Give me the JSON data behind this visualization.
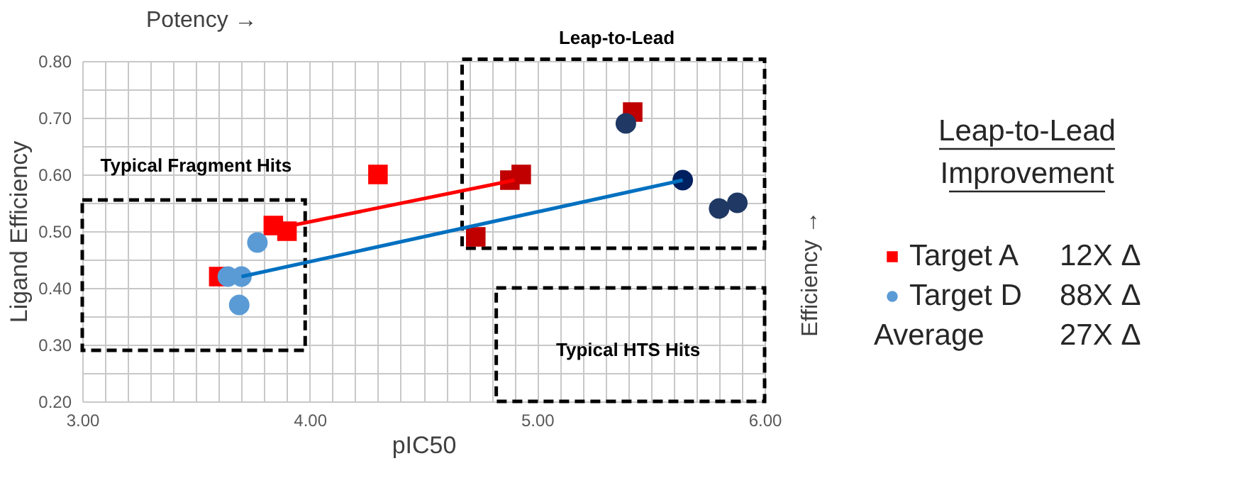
{
  "chart_data": {
    "type": "scatter",
    "xlabel": "pIC50",
    "ylabel": "Ligand Efficiency",
    "legend_title": "Leap-to-Lead Improvement",
    "legend": "right",
    "grid": true,
    "xlim": [
      3.0,
      6.0
    ],
    "ylim": [
      0.2,
      0.8
    ],
    "xticks": [
      {
        "value": 3.0,
        "label": "3.00"
      },
      {
        "value": 3.1,
        "label": null
      },
      {
        "value": 3.2,
        "label": null
      },
      {
        "value": 3.3,
        "label": null
      },
      {
        "value": 3.4,
        "label": null
      },
      {
        "value": 3.5,
        "label": null
      },
      {
        "value": 3.6,
        "label": null
      },
      {
        "value": 3.7,
        "label": null
      },
      {
        "value": 3.8,
        "label": null
      },
      {
        "value": 3.9,
        "label": null
      },
      {
        "value": 4.0,
        "label": "4.00"
      },
      {
        "value": 4.1,
        "label": null
      },
      {
        "value": 4.2,
        "label": null
      },
      {
        "value": 4.3,
        "label": null
      },
      {
        "value": 4.4,
        "label": null
      },
      {
        "value": 4.5,
        "label": null
      },
      {
        "value": 4.6,
        "label": null
      },
      {
        "value": 4.7,
        "label": null
      },
      {
        "value": 4.8,
        "label": null
      },
      {
        "value": 4.9,
        "label": null
      },
      {
        "value": 5.0,
        "label": "5.00"
      },
      {
        "value": 5.1,
        "label": null
      },
      {
        "value": 5.2,
        "label": null
      },
      {
        "value": 5.3,
        "label": null
      },
      {
        "value": 5.4,
        "label": null
      },
      {
        "value": 5.5,
        "label": null
      },
      {
        "value": 5.6,
        "label": null
      },
      {
        "value": 5.7,
        "label": null
      },
      {
        "value": 5.8,
        "label": null
      },
      {
        "value": 5.9,
        "label": null
      },
      {
        "value": 6.0,
        "label": "6.00"
      }
    ],
    "yticks": [
      {
        "value": 0.2,
        "label": "0.20"
      },
      {
        "value": 0.25,
        "label": null
      },
      {
        "value": 0.3,
        "label": "0.30"
      },
      {
        "value": 0.35,
        "label": null
      },
      {
        "value": 0.4,
        "label": "0.40"
      },
      {
        "value": 0.45,
        "label": null
      },
      {
        "value": 0.5,
        "label": "0.50"
      },
      {
        "value": 0.55,
        "label": null
      },
      {
        "value": 0.6,
        "label": "0.60"
      },
      {
        "value": 0.65,
        "label": null
      },
      {
        "value": 0.7,
        "label": "0.70"
      },
      {
        "value": 0.75,
        "label": null
      },
      {
        "value": 0.8,
        "label": "0.80"
      }
    ],
    "series": [
      {
        "name": "Target A",
        "type": "scatter",
        "marker": "square",
        "color": "#ff0000",
        "x": [
          3.6,
          3.84,
          3.9,
          4.3,
          4.88,
          4.93,
          4.73,
          5.42
        ],
        "values": [
          0.42,
          0.51,
          0.5,
          0.6,
          0.59,
          0.6,
          0.49,
          0.71
        ],
        "colors": [
          "#ff0000",
          "#ff0000",
          "#ff0000",
          "#ff0000",
          "#c00000",
          "#c00000",
          "#c00000",
          "#c00000"
        ]
      },
      {
        "name": "Target D",
        "type": "scatter",
        "marker": "circle",
        "color": "#5b9bd5",
        "x": [
          3.64,
          3.7,
          3.69,
          3.77,
          5.39,
          5.64,
          5.8,
          5.88
        ],
        "values": [
          0.42,
          0.42,
          0.37,
          0.48,
          0.69,
          0.59,
          0.54,
          0.55
        ],
        "colors": [
          "#5b9bd5",
          "#5b9bd5",
          "#5b9bd5",
          "#5b9bd5",
          "#1f3864",
          "#002060",
          "#1f3864",
          "#1f3864"
        ]
      },
      {
        "type": "line",
        "color": "#ff0000",
        "x": [
          3.92,
          4.9
        ],
        "values": [
          0.51,
          0.59
        ]
      },
      {
        "type": "line",
        "color": "#0070c0",
        "x": [
          3.7,
          5.64
        ],
        "values": [
          0.42,
          0.59
        ]
      }
    ],
    "annotations": [
      "Typical Fragment Hits",
      "Leap-to-Lead",
      "Typical HTS Hits",
      "Potency →",
      "Efficiency →",
      "12X Δ",
      "88X Δ",
      "Average",
      "27X Δ"
    ]
  }
}
